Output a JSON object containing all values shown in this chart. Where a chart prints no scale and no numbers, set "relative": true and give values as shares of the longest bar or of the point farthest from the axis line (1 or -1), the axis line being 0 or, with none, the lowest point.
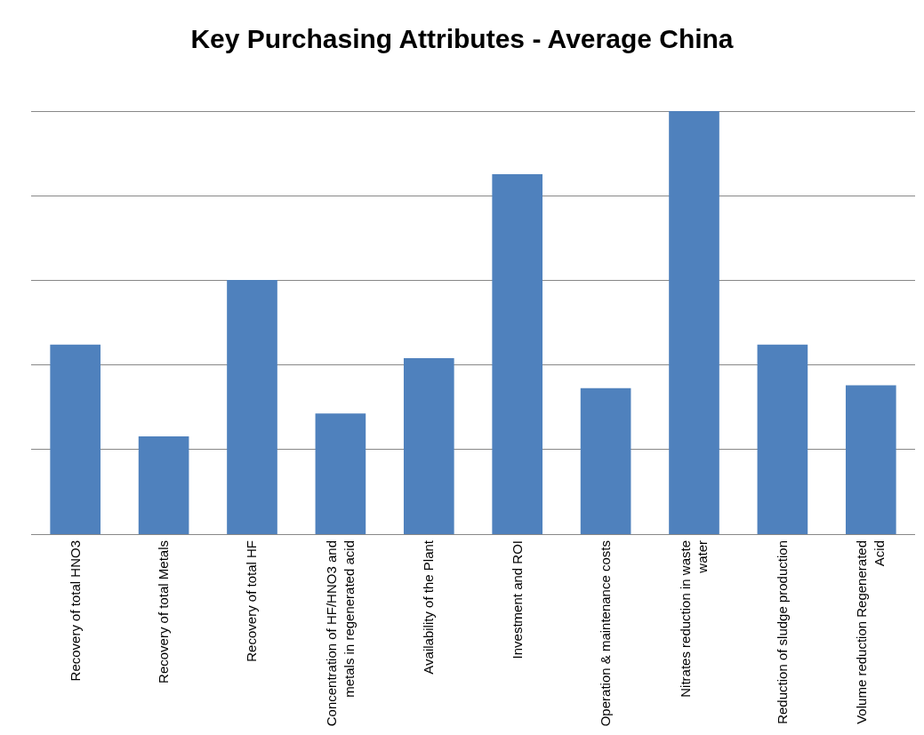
{
  "chart_data": {
    "type": "bar",
    "title": "Key Purchasing Attributes - Average China",
    "categories": [
      "Recovery of total HNO3",
      "Recovery of total Metals",
      "Recovery of total HF",
      "Concentration of HF/HNO3 and metals in regenerated acid",
      "Availability of the Plant",
      "Investment and ROI",
      "Operation & maintenance costs",
      "Nitrates reduction in waste water",
      "Reduction of sludge production",
      "Volume reduction Regenerated Acid"
    ],
    "values": [
      0.448,
      0.231,
      0.601,
      0.285,
      0.416,
      0.851,
      0.345,
      1,
      0.448,
      0.352
    ],
    "color": "#4f81bd",
    "relative": true,
    "grid": "y"
  }
}
